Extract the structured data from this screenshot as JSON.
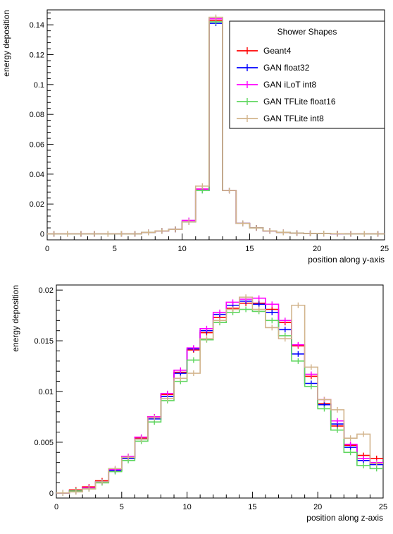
{
  "chart_data": [
    {
      "type": "line",
      "style": "step-histogram",
      "xlabel": "position along y-axis",
      "ylabel": "energy deposition",
      "xlim": [
        0,
        25
      ],
      "ylim": [
        -0.004,
        0.15
      ],
      "xticks": [
        "0",
        "5",
        "10",
        "15",
        "20",
        "25"
      ],
      "yticks": [
        "0",
        "0.02",
        "0.04",
        "0.06",
        "0.08",
        "0.1",
        "0.12",
        "0.14"
      ],
      "grid": false,
      "legend": {
        "title": "Shower Shapes",
        "placement": "top-right"
      },
      "series": [
        {
          "name": "Geant4",
          "color": "#ff0000",
          "values": [
            0,
            0,
            0,
            0,
            0,
            0,
            0,
            0.001,
            0.002,
            0.003,
            0.008,
            0.03,
            0.143,
            0.029,
            0.007,
            0.004,
            0.002,
            0.001,
            0.0005,
            0.0003,
            0.0002,
            0.0001,
            0,
            0,
            0
          ]
        },
        {
          "name": "GAN float32",
          "color": "#0000ff",
          "values": [
            0,
            0,
            0,
            0,
            0,
            0,
            0,
            0.001,
            0.002,
            0.003,
            0.008,
            0.029,
            0.141,
            0.029,
            0.007,
            0.004,
            0.002,
            0.001,
            0.0005,
            0.0003,
            0.0002,
            0.0001,
            0,
            0,
            0
          ]
        },
        {
          "name": "GAN iLoT int8",
          "color": "#ff00ff",
          "values": [
            0,
            0,
            0,
            0,
            0,
            0,
            0,
            0.001,
            0.002,
            0.003,
            0.009,
            0.03,
            0.144,
            0.029,
            0.007,
            0.004,
            0.002,
            0.001,
            0.0005,
            0.0003,
            0.0002,
            0.0001,
            0,
            0,
            0
          ]
        },
        {
          "name": "GAN TFLite float16",
          "color": "#5fd65f",
          "values": [
            0,
            0,
            0,
            0,
            0,
            0,
            0,
            0.001,
            0.002,
            0.003,
            0.008,
            0.029,
            0.142,
            0.029,
            0.007,
            0.004,
            0.002,
            0.001,
            0.0005,
            0.0003,
            0.0002,
            0.0001,
            0,
            0,
            0
          ]
        },
        {
          "name": "GAN TFLite int8",
          "color": "#d2b48c",
          "values": [
            0,
            0,
            0,
            0,
            0,
            0,
            0,
            0.001,
            0.002,
            0.003,
            0.008,
            0.032,
            0.145,
            0.029,
            0.007,
            0.004,
            0.002,
            0.001,
            0.0005,
            0.0003,
            0.0002,
            0.0001,
            0,
            0,
            0
          ]
        }
      ]
    },
    {
      "type": "line",
      "style": "step-histogram",
      "xlabel": "position along z-axis",
      "ylabel": "energy deposition",
      "xlim": [
        0,
        25
      ],
      "ylim": [
        -0.0005,
        0.0205
      ],
      "xticks": [
        "0",
        "5",
        "10",
        "15",
        "20",
        "25"
      ],
      "yticks": [
        "0",
        "0.005",
        "0.01",
        "0.015",
        "0.02"
      ],
      "grid": false,
      "series": [
        {
          "name": "Geant4",
          "color": "#ff0000",
          "values": [
            0,
            0.0003,
            0.0006,
            0.0012,
            0.0022,
            0.0035,
            0.0054,
            0.0075,
            0.0097,
            0.0119,
            0.0141,
            0.0158,
            0.0173,
            0.0182,
            0.0187,
            0.0187,
            0.0181,
            0.0168,
            0.0145,
            0.0115,
            0.0088,
            0.0066,
            0.0047,
            0.0037,
            0.0034
          ]
        },
        {
          "name": "GAN float32",
          "color": "#0000ff",
          "values": [
            0,
            0.0002,
            0.0005,
            0.0011,
            0.0022,
            0.0034,
            0.0053,
            0.0073,
            0.0095,
            0.0118,
            0.0142,
            0.016,
            0.0176,
            0.0185,
            0.0189,
            0.0186,
            0.0178,
            0.0161,
            0.0137,
            0.0108,
            0.0087,
            0.0068,
            0.0045,
            0.0032,
            0.0028
          ]
        },
        {
          "name": "GAN iLoT int8",
          "color": "#ff00ff",
          "values": [
            0,
            0.0002,
            0.0005,
            0.0011,
            0.0023,
            0.0036,
            0.0055,
            0.0075,
            0.0098,
            0.0121,
            0.0143,
            0.0162,
            0.0178,
            0.0188,
            0.0191,
            0.0192,
            0.0186,
            0.017,
            0.0146,
            0.0117,
            0.0092,
            0.0071,
            0.0048,
            0.0034,
            0.003
          ]
        },
        {
          "name": "GAN TFLite float16",
          "color": "#5fd65f",
          "values": [
            0,
            0.0002,
            0.0004,
            0.001,
            0.0021,
            0.0032,
            0.0051,
            0.007,
            0.0091,
            0.011,
            0.0131,
            0.0151,
            0.0168,
            0.0178,
            0.0181,
            0.0179,
            0.017,
            0.0155,
            0.013,
            0.0105,
            0.0083,
            0.0062,
            0.004,
            0.0027,
            0.0024
          ]
        },
        {
          "name": "GAN TFLite int8",
          "color": "#d2b48c",
          "values": [
            0,
            0.0001,
            0.0004,
            0.0011,
            0.0024,
            0.0035,
            0.0053,
            0.0074,
            0.0093,
            0.0113,
            0.0118,
            0.0152,
            0.017,
            0.0181,
            0.0193,
            0.0181,
            0.0163,
            0.0152,
            0.0185,
            0.0124,
            0.0092,
            0.0082,
            0.0054,
            0.0058,
            0.0029
          ]
        }
      ]
    }
  ]
}
